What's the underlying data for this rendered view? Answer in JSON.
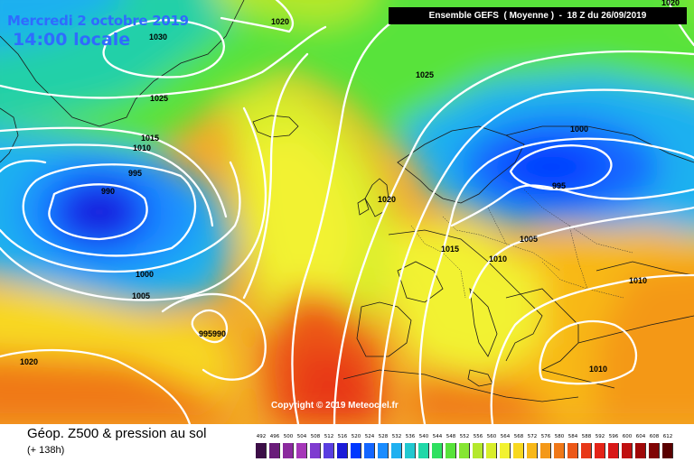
{
  "map": {
    "date": "Mercredi 2 octobre 2019",
    "local_time": "14:00 locale",
    "run_info": "Ensemble GEFS  ( Moyenne )  -  18 Z du 26/09/2019",
    "copyright": "Copyright © 2019 Meteociel.fr",
    "isobar_labels": [
      "1020",
      "1030",
      "1025",
      "1015",
      "1010",
      "995",
      "990",
      "1000",
      "1005",
      "995990",
      "1020",
      "1025",
      "1020",
      "1000",
      "995",
      "1020",
      "1015",
      "1010",
      "1005",
      "1010",
      "1010",
      "1020"
    ]
  },
  "legend": {
    "title": "Géop. Z500 & pression au sol",
    "forecast_hours": "(+ 138h)",
    "scale_values": [
      "492",
      "496",
      "500",
      "504",
      "508",
      "512",
      "516",
      "520",
      "524",
      "528",
      "532",
      "536",
      "540",
      "544",
      "548",
      "552",
      "556",
      "560",
      "564",
      "568",
      "572",
      "576",
      "580",
      "584",
      "588",
      "592",
      "596",
      "600",
      "604",
      "608",
      "612"
    ],
    "scale_colors": [
      "#3c0e47",
      "#6a1d7a",
      "#8b2a9e",
      "#a537b8",
      "#7f3bd0",
      "#5a3fe0",
      "#1c1cd8",
      "#0038ff",
      "#1466ff",
      "#1a8cff",
      "#1fb0f0",
      "#22c8d0",
      "#20d8a8",
      "#2ee060",
      "#58e33a",
      "#86e632",
      "#b4e82c",
      "#d8ee2a",
      "#f2f230",
      "#f8d820",
      "#f8b818",
      "#f49818",
      "#f07818",
      "#ec5818",
      "#e83818",
      "#e42418",
      "#d81818",
      "#c01010",
      "#a00808",
      "#800404",
      "#5a0000"
    ]
  }
}
